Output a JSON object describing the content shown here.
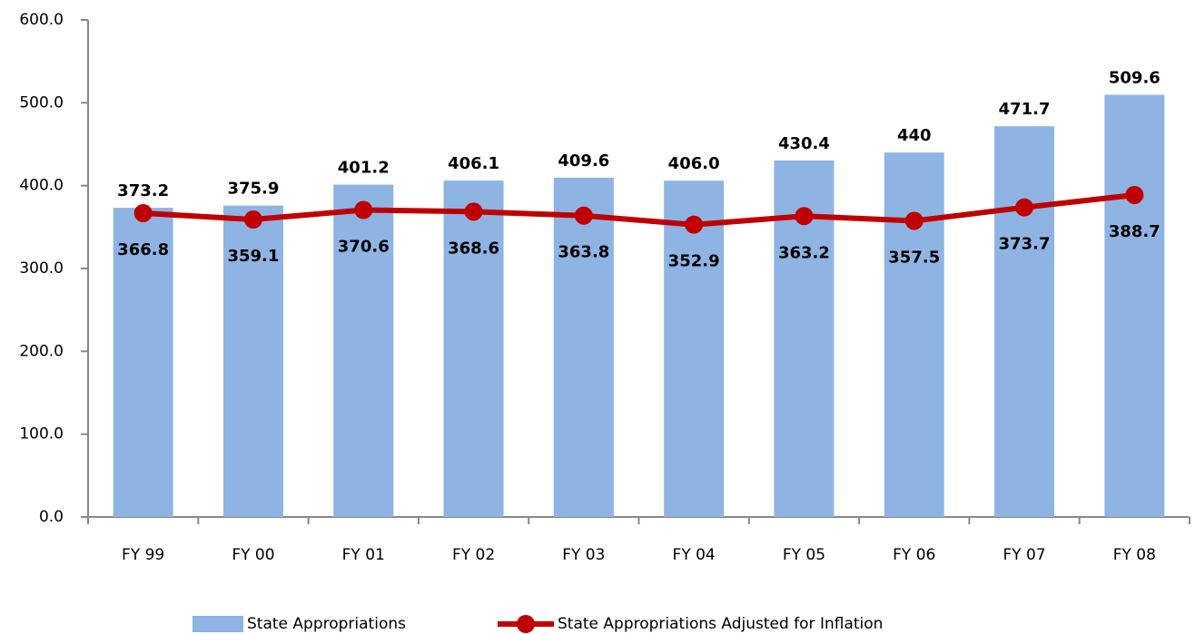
{
  "chart_data": {
    "type": "bar_line",
    "categories": [
      "FY 99",
      "FY 00",
      "FY 01",
      "FY 02",
      "FY 03",
      "FY 04",
      "FY 05",
      "FY 06",
      "FY 07",
      "FY 08"
    ],
    "series": [
      {
        "name": "State Appropriations",
        "type": "bar",
        "color": "#8eb4e3",
        "values": [
          373.2,
          375.9,
          401.2,
          406.1,
          409.6,
          406.0,
          430.4,
          440,
          471.7,
          509.6
        ],
        "value_labels": [
          "373.2",
          "375.9",
          "401.2",
          "406.1",
          "409.6",
          "406.0",
          "430.4",
          "440",
          "471.7",
          "509.6"
        ]
      },
      {
        "name": "State Appropriations Adjusted for Inflation",
        "type": "line",
        "color": "#c00000",
        "values": [
          366.8,
          359.1,
          370.6,
          368.6,
          363.8,
          352.9,
          363.2,
          357.5,
          373.7,
          388.7
        ]
      }
    ],
    "ylim": [
      0,
      600
    ],
    "yticks": [
      {
        "value": 0,
        "label": "0.0"
      },
      {
        "value": 100,
        "label": "100.0"
      },
      {
        "value": 200,
        "label": "200.0"
      },
      {
        "value": 300,
        "label": "300.0"
      },
      {
        "value": 400,
        "label": "400.0"
      },
      {
        "value": 500,
        "label": "500.0"
      },
      {
        "value": 600,
        "label": "600.0"
      }
    ],
    "grid": false,
    "legend": "bottom"
  }
}
